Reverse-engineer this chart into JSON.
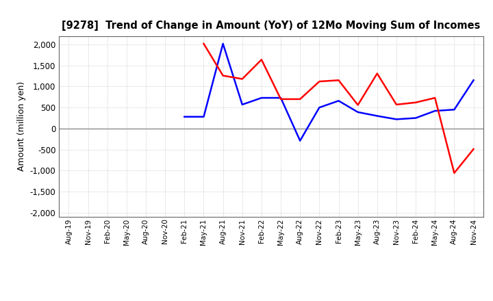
{
  "title": "[9278]  Trend of Change in Amount (YoY) of 12Mo Moving Sum of Incomes",
  "ylabel": "Amount (million yen)",
  "x_labels": [
    "Aug-19",
    "Nov-19",
    "Feb-20",
    "May-20",
    "Aug-20",
    "Nov-20",
    "Feb-21",
    "May-21",
    "Aug-21",
    "Nov-21",
    "Feb-22",
    "May-22",
    "Aug-22",
    "Nov-22",
    "Feb-23",
    "May-23",
    "Aug-23",
    "Nov-23",
    "Feb-24",
    "May-24",
    "Aug-24",
    "Nov-24"
  ],
  "ordinary_income": [
    null,
    null,
    null,
    null,
    null,
    null,
    280,
    280,
    2020,
    570,
    730,
    730,
    -290,
    500,
    660,
    390,
    300,
    220,
    250,
    420,
    450,
    1150
  ],
  "net_income": [
    null,
    null,
    null,
    null,
    null,
    null,
    null,
    2020,
    1260,
    1180,
    1640,
    700,
    700,
    1120,
    1150,
    560,
    1310,
    570,
    620,
    730,
    -1060,
    -490
  ],
  "ordinary_color": "#0000FF",
  "net_color": "#FF0000",
  "ylim": [
    -2100,
    2200
  ],
  "yticks": [
    -2000,
    -1500,
    -1000,
    -500,
    0,
    500,
    1000,
    1500,
    2000
  ],
  "background_color": "#FFFFFF",
  "grid_color": "#BBBBBB",
  "zero_line_color": "#808080"
}
